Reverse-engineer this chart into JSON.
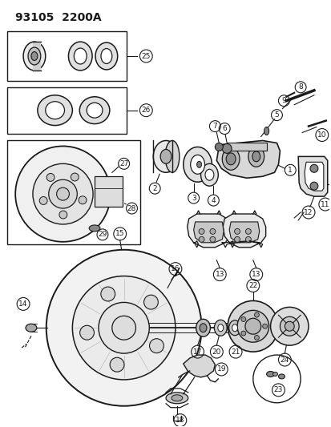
{
  "title": "93105  2200A",
  "background_color": "#ffffff",
  "line_color": "#1a1a1a",
  "text_color": "#1a1a1a",
  "figsize": [
    4.14,
    5.33
  ],
  "dpi": 100
}
